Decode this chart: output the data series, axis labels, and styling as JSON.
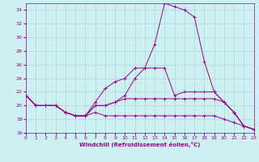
{
  "xlabel": "Windchill (Refroidissement éolien,°C)",
  "xlim": [
    0,
    23
  ],
  "ylim": [
    16,
    35
  ],
  "yticks": [
    16,
    18,
    20,
    22,
    24,
    26,
    28,
    30,
    32,
    34
  ],
  "xticks": [
    0,
    1,
    2,
    3,
    4,
    5,
    6,
    7,
    8,
    9,
    10,
    11,
    12,
    13,
    14,
    15,
    16,
    17,
    18,
    19,
    20,
    21,
    22,
    23
  ],
  "background_color": "#cef0f0",
  "grid_color": "#aadddd",
  "line_color": "#990099",
  "lines": [
    {
      "x": [
        0,
        1,
        2,
        3,
        4,
        5,
        6,
        7,
        8,
        9,
        10,
        11,
        12,
        13,
        14,
        15,
        16,
        17,
        18,
        19,
        20,
        21,
        22,
        23
      ],
      "y": [
        21.5,
        20.0,
        20.0,
        20.0,
        19.0,
        18.5,
        18.5,
        20.0,
        20.0,
        20.5,
        21.5,
        24.0,
        25.5,
        29.0,
        35.0,
        34.5,
        34.0,
        33.0,
        26.5,
        22.0,
        20.5,
        19.0,
        17.0,
        16.5
      ]
    },
    {
      "x": [
        0,
        1,
        2,
        3,
        4,
        5,
        6,
        7,
        8,
        9,
        10,
        11,
        12,
        13,
        14,
        15,
        16,
        17,
        18,
        19,
        20,
        21,
        22,
        23
      ],
      "y": [
        21.5,
        20.0,
        20.0,
        20.0,
        19.0,
        18.5,
        18.5,
        20.5,
        22.5,
        23.5,
        24.0,
        25.5,
        25.5,
        25.5,
        25.5,
        21.5,
        22.0,
        22.0,
        22.0,
        22.0,
        20.5,
        19.0,
        17.0,
        16.5
      ]
    },
    {
      "x": [
        0,
        1,
        2,
        3,
        4,
        5,
        6,
        7,
        8,
        9,
        10,
        11,
        12,
        13,
        14,
        15,
        16,
        17,
        18,
        19,
        20,
        21,
        22,
        23
      ],
      "y": [
        21.5,
        20.0,
        20.0,
        20.0,
        19.0,
        18.5,
        18.5,
        20.0,
        20.0,
        20.5,
        21.0,
        21.0,
        21.0,
        21.0,
        21.0,
        21.0,
        21.0,
        21.0,
        21.0,
        21.0,
        20.5,
        19.0,
        17.0,
        16.5
      ]
    },
    {
      "x": [
        0,
        1,
        2,
        3,
        4,
        5,
        6,
        7,
        8,
        9,
        10,
        11,
        12,
        13,
        14,
        15,
        16,
        17,
        18,
        19,
        20,
        21,
        22,
        23
      ],
      "y": [
        21.5,
        20.0,
        20.0,
        20.0,
        19.0,
        18.5,
        18.5,
        19.0,
        18.5,
        18.5,
        18.5,
        18.5,
        18.5,
        18.5,
        18.5,
        18.5,
        18.5,
        18.5,
        18.5,
        18.5,
        18.0,
        17.5,
        17.0,
        16.5
      ]
    }
  ]
}
